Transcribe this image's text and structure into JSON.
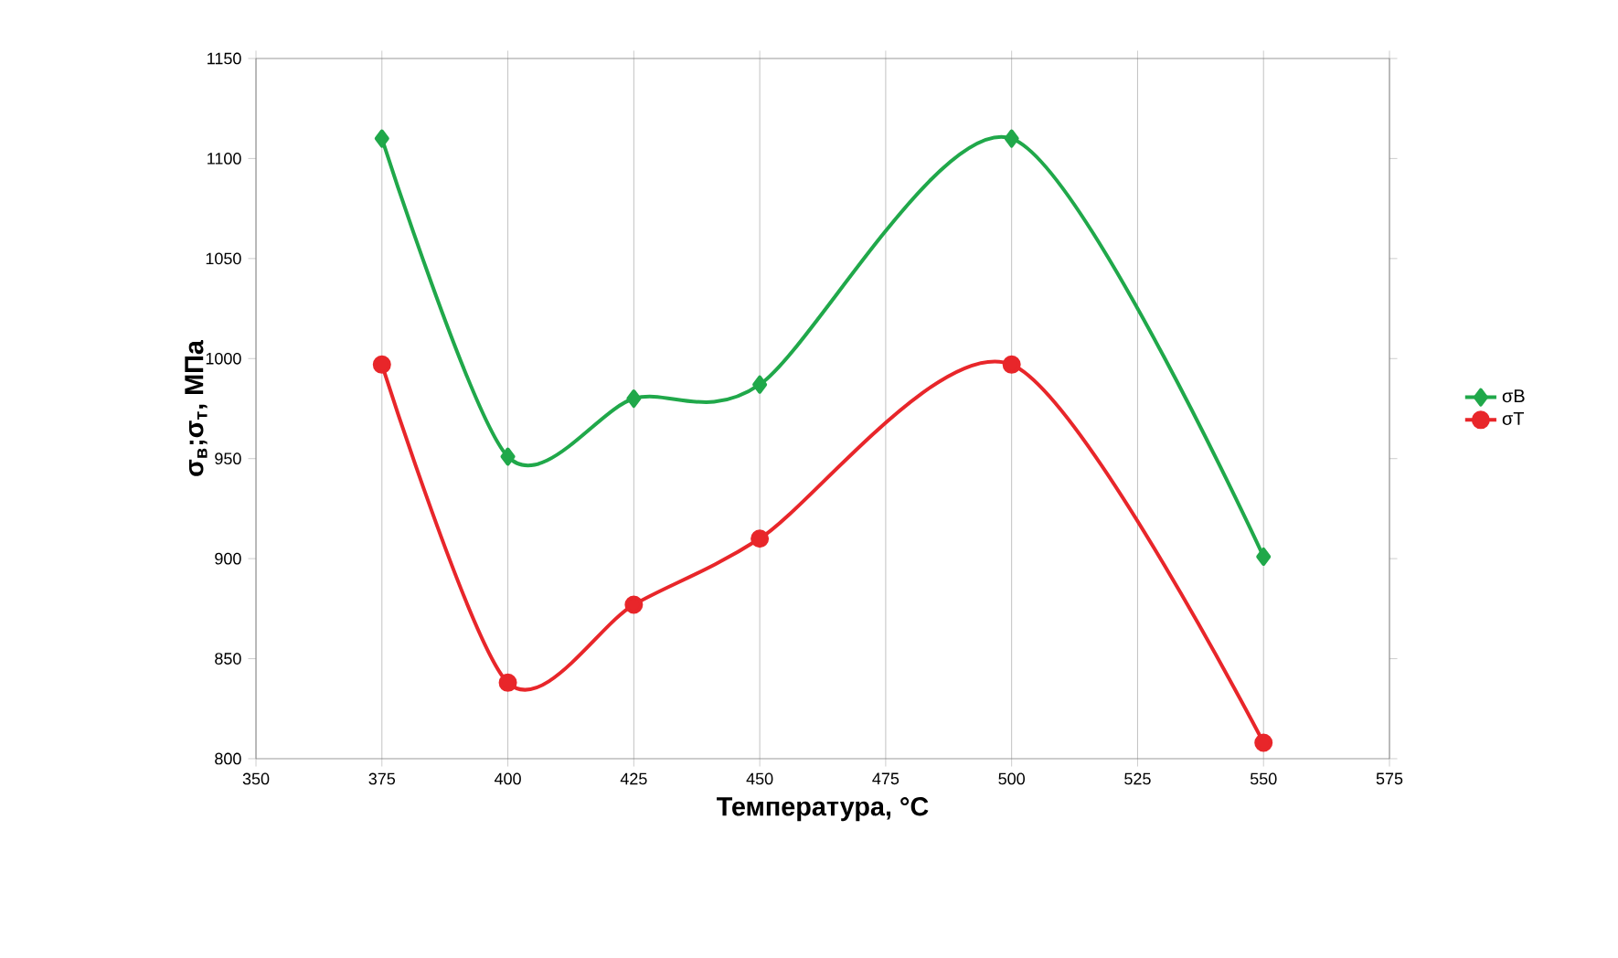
{
  "chart_data": {
    "type": "line",
    "xlabel": "Температура, °C",
    "ylabel": "σ$_{в}$;σ$_{т}$, МПа",
    "x": [
      375,
      400,
      425,
      450,
      500,
      550
    ],
    "series": [
      {
        "name": "σВ",
        "color": "#20a84a",
        "marker": "diamond",
        "values": [
          1110,
          951,
          980,
          987,
          1110,
          901
        ]
      },
      {
        "name": "σТ",
        "color": "#e8262a",
        "marker": "circle",
        "values": [
          997,
          838,
          877,
          910,
          997,
          808
        ]
      }
    ],
    "xlim": [
      350,
      575
    ],
    "xticks": [
      350,
      375,
      400,
      425,
      450,
      475,
      500,
      525,
      550,
      575
    ],
    "ylim": [
      800,
      1150
    ],
    "yticks": [
      800,
      850,
      900,
      950,
      1000,
      1050,
      1100,
      1150
    ],
    "grid": "x",
    "legend": "right",
    "line_style": "solid"
  }
}
